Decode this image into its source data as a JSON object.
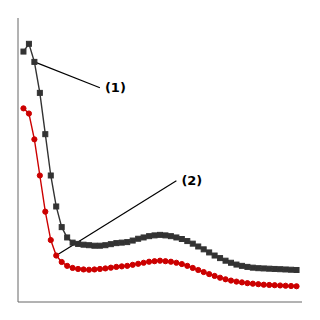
{
  "chart_data": {
    "type": "line",
    "x": [
      0,
      1,
      2,
      3,
      4,
      5,
      6,
      7,
      8,
      9,
      10,
      11,
      12,
      13,
      14,
      15,
      16,
      17,
      18,
      19,
      20,
      21,
      22,
      23,
      24,
      25,
      26,
      27,
      28,
      29,
      30,
      31,
      32,
      33,
      34,
      35,
      36,
      37,
      38,
      39,
      40,
      41,
      42,
      43,
      44,
      45,
      46,
      47,
      48,
      49,
      50
    ],
    "series": [
      {
        "color": "#333333",
        "marker": "square",
        "values": [
          0.92,
          0.95,
          0.88,
          0.76,
          0.6,
          0.44,
          0.32,
          0.24,
          0.2,
          0.18,
          0.175,
          0.172,
          0.17,
          0.168,
          0.168,
          0.17,
          0.174,
          0.178,
          0.18,
          0.182,
          0.188,
          0.195,
          0.2,
          0.205,
          0.208,
          0.21,
          0.208,
          0.205,
          0.2,
          0.194,
          0.186,
          0.176,
          0.165,
          0.154,
          0.142,
          0.13,
          0.12,
          0.11,
          0.102,
          0.095,
          0.09,
          0.086,
          0.083,
          0.081,
          0.08,
          0.079,
          0.078,
          0.077,
          0.076,
          0.075,
          0.074
        ]
      },
      {
        "color": "#cc0000",
        "marker": "circle",
        "values": [
          0.7,
          0.68,
          0.58,
          0.44,
          0.3,
          0.19,
          0.13,
          0.105,
          0.09,
          0.082,
          0.078,
          0.076,
          0.075,
          0.076,
          0.078,
          0.08,
          0.083,
          0.086,
          0.088,
          0.09,
          0.094,
          0.098,
          0.102,
          0.106,
          0.108,
          0.11,
          0.108,
          0.106,
          0.102,
          0.097,
          0.09,
          0.082,
          0.074,
          0.066,
          0.058,
          0.051,
          0.044,
          0.038,
          0.033,
          0.029,
          0.026,
          0.023,
          0.021,
          0.019,
          0.017,
          0.016,
          0.015,
          0.014,
          0.013,
          0.012,
          0.011
        ]
      }
    ],
    "annotations": [
      {
        "text": "(1)",
        "xy": [
          2,
          0.88
        ],
        "text_xy": [
          14,
          0.78
        ]
      },
      {
        "text": "(2)",
        "xy": [
          6,
          0.13
        ],
        "text_xy": [
          28,
          0.42
        ]
      }
    ],
    "xlim": [
      -1,
      51
    ],
    "ylim": [
      -0.05,
      1.05
    ],
    "tick_labels": false,
    "grid": false
  }
}
